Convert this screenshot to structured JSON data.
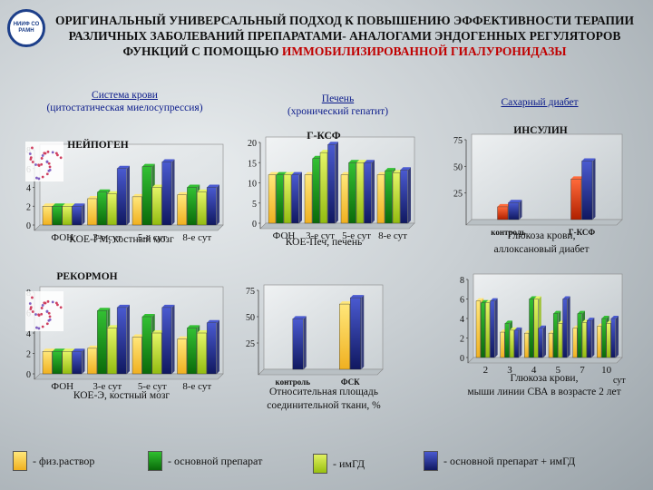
{
  "logo": {
    "text": "НИИФ СО РАМН"
  },
  "title": {
    "text": "ОРИГИНАЛЬНЫЙ УНИВЕРСАЛЬНЫЙ ПОДХОД К ПОВЫШЕНИЮ ЭФФЕКТИВНОСТИ ТЕРАПИИ РАЗЛИЧНЫХ ЗАБОЛЕВАНИЙ ПРЕПАРАТАМИ- АНАЛОГАМИ ЭНДОГЕННЫХ РЕГУЛЯТОРОВ ФУНКЦИЙ С ПОМОЩЬЮ",
    "highlight": "ИММОБИЛИЗИРОВАННОЙ ГИАЛУРОНИДАЗЫ"
  },
  "sections": {
    "blood": {
      "title": "Система крови",
      "subtitle": "(цитостатическая миелосупрессия)"
    },
    "liver": {
      "title": "Печень",
      "subtitle": "(хронический гепатит)"
    },
    "diabetes": {
      "title": "Сахарный диабет"
    }
  },
  "colors": {
    "saline": "#f0c030",
    "main": "#138a13",
    "img": "#b8d820",
    "combo": "#1c2a8a",
    "vivid": "#d03a1a"
  },
  "legend": [
    {
      "key": "saline",
      "label": "- физ.раствор"
    },
    {
      "key": "main",
      "label": "- основной препарат"
    },
    {
      "key": "img",
      "label": "- имГД"
    },
    {
      "key": "combo",
      "label": "- основной препарат + имГД"
    }
  ],
  "chart_data": [
    {
      "id": "neupogen",
      "type": "bar",
      "title": "НЕЙПОГЕН",
      "xlabel": "КОЕ-ГМ, костный мозг",
      "categories": [
        "ФОН",
        "3-е сут",
        "5-е сут",
        "8-е сут"
      ],
      "ylim": [
        0,
        8
      ],
      "yticks": [
        0,
        2,
        4,
        6,
        8
      ],
      "series": [
        {
          "key": "saline",
          "values": [
            2,
            2.8,
            3,
            3.2
          ]
        },
        {
          "key": "main",
          "values": [
            2,
            3.5,
            6.2,
            4
          ]
        },
        {
          "key": "img",
          "values": [
            2,
            3.3,
            4,
            3.5
          ]
        },
        {
          "key": "combo",
          "values": [
            2,
            6,
            6.7,
            4
          ]
        }
      ]
    },
    {
      "id": "gcsf",
      "type": "bar",
      "title": "Г-КСФ",
      "xlabel": "КОЕ-Печ, печень",
      "categories": [
        "ФОН",
        "3-е сут",
        "5-е сут",
        "8-е сут"
      ],
      "ylim": [
        0,
        20
      ],
      "yticks": [
        0,
        5,
        10,
        15,
        20
      ],
      "series": [
        {
          "key": "saline",
          "values": [
            12,
            12,
            12,
            12
          ]
        },
        {
          "key": "main",
          "values": [
            12,
            16,
            15,
            13
          ]
        },
        {
          "key": "img",
          "values": [
            12,
            17.5,
            15,
            12.5
          ]
        },
        {
          "key": "combo",
          "values": [
            12,
            19.5,
            15,
            13.2
          ]
        }
      ]
    },
    {
      "id": "insulin",
      "type": "bar",
      "title": "ИНСУЛИН",
      "xlabel": "Глюкоза крови, аллоксановый диабет",
      "categories": [
        "контроль",
        "Г-КСФ"
      ],
      "ylim": [
        0,
        75
      ],
      "yticks": [
        25,
        50,
        75
      ],
      "series": [
        {
          "key": "vivid",
          "values": [
            12,
            38
          ]
        },
        {
          "key": "combo",
          "values": [
            16,
            55
          ]
        }
      ]
    },
    {
      "id": "recormon",
      "type": "bar",
      "title": "РЕКОРМОН",
      "xlabel": "КОЕ-Э, костный мозг",
      "categories": [
        "ФОН",
        "3-е сут",
        "5-е сут",
        "8-е сут"
      ],
      "ylim": [
        0,
        8
      ],
      "yticks": [
        0,
        2,
        4,
        6,
        8
      ],
      "series": [
        {
          "key": "saline",
          "values": [
            2.2,
            2.5,
            3.6,
            3.4
          ]
        },
        {
          "key": "main",
          "values": [
            2.2,
            6.2,
            5.6,
            4.5
          ]
        },
        {
          "key": "img",
          "values": [
            2.2,
            4.5,
            4,
            4
          ]
        },
        {
          "key": "combo",
          "values": [
            2.2,
            6.5,
            6.5,
            5
          ]
        }
      ]
    },
    {
      "id": "tissue",
      "type": "bar",
      "title": "",
      "xlabel": "Относительная площадь соединительной ткани, %",
      "categories": [
        "контроль",
        "ФСК"
      ],
      "ylim": [
        0,
        75
      ],
      "yticks": [
        25,
        50,
        75
      ],
      "series": [
        {
          "key": "saline",
          "values": [
            0,
            62
          ]
        },
        {
          "key": "combo",
          "values": [
            48,
            68
          ]
        }
      ]
    },
    {
      "id": "mice",
      "type": "bar",
      "title": "",
      "xlabel": "Глюкоза крови, мыши линии СВА в возрасте 2 лет",
      "categories": [
        "2",
        "3",
        "4",
        "5",
        "7",
        "10"
      ],
      "x_unit": "сут",
      "ylim": [
        0,
        8
      ],
      "yticks": [
        0,
        2,
        4,
        6,
        8
      ],
      "series": [
        {
          "key": "saline",
          "values": [
            5.8,
            2.6,
            2.5,
            2.5,
            3,
            3.2
          ]
        },
        {
          "key": "main",
          "values": [
            5.6,
            3.5,
            6,
            4.5,
            4.5,
            4
          ]
        },
        {
          "key": "img",
          "values": [
            5.6,
            2.8,
            6,
            3.5,
            3.6,
            3.5
          ]
        },
        {
          "key": "combo",
          "values": [
            5.8,
            2.8,
            3,
            6,
            3.8,
            4
          ]
        }
      ]
    }
  ]
}
